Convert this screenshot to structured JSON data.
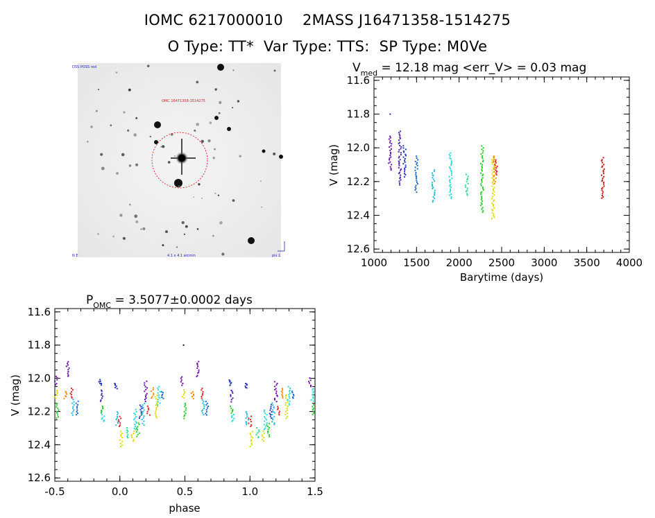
{
  "header": {
    "line1": "IOMC 6217000010    2MASS J16471358-1514275",
    "line2": "O Type: TT*  Var Type: TTS:  SP Type: M0Ve"
  },
  "image": {
    "label_top_left": "DSS POSS red",
    "label_center": "OMC 16471358-1514275",
    "label_bottom_left": "N E",
    "label_bottom_center": "4.1 x 4.1 arcmin",
    "label_bottom_right": "pix 1"
  },
  "lightcurve": {
    "title_main": "V",
    "title_sub": "med",
    "title_rest": " = 12.18 mag <err_V> = 0.03 mag",
    "xlabel": "Barytime (days)",
    "ylabel": "V (mag)"
  },
  "phaseplot": {
    "title_main": "P",
    "title_sub": "OMC",
    "title_rest": " = 3.5077±0.0002 days",
    "xlabel": "phase",
    "ylabel": "V (mag)"
  },
  "chart_data": [
    {
      "type": "scatter",
      "id": "lightcurve",
      "xlabel": "Barytime (days)",
      "ylabel": "V (mag)",
      "xlim": [
        1000,
        4000
      ],
      "ylim": [
        12.62,
        11.58
      ],
      "y_inverted": true,
      "xticks": [
        1000,
        1500,
        2000,
        2500,
        3000,
        3500,
        4000
      ],
      "yticks": [
        11.6,
        11.8,
        12.0,
        12.2,
        12.4,
        12.6
      ],
      "groups": [
        {
          "x": 1190,
          "ymin": 11.93,
          "ymax": 12.13,
          "color": "#6a0dad"
        },
        {
          "x": 1305,
          "ymin": 11.9,
          "ymax": 12.22,
          "color": "#4b1fa8"
        },
        {
          "x": 1360,
          "ymin": 11.99,
          "ymax": 12.17,
          "color": "#2233bb"
        },
        {
          "x": 1500,
          "ymin": 12.05,
          "ymax": 12.26,
          "color": "#1a66cc"
        },
        {
          "x": 1700,
          "ymin": 12.13,
          "ymax": 12.32,
          "color": "#22bbdd"
        },
        {
          "x": 1900,
          "ymin": 12.03,
          "ymax": 12.3,
          "color": "#22d8d8"
        },
        {
          "x": 2090,
          "ymin": 12.16,
          "ymax": 12.28,
          "color": "#22dd88"
        },
        {
          "x": 2270,
          "ymin": 11.99,
          "ymax": 12.38,
          "color": "#22cc22"
        },
        {
          "x": 2400,
          "ymin": 12.05,
          "ymax": 12.42,
          "color": "#dddd00"
        },
        {
          "x": 2420,
          "ymin": 12.05,
          "ymax": 12.21,
          "color": "#ff8800"
        },
        {
          "x": 2435,
          "ymin": 12.07,
          "ymax": 12.16,
          "color": "#dd2222"
        },
        {
          "x": 3690,
          "ymin": 12.06,
          "ymax": 12.3,
          "color": "#cc1111"
        }
      ],
      "outliers": [
        {
          "x": 1190,
          "y": 11.8,
          "color": "#6a0dad"
        }
      ]
    },
    {
      "type": "scatter",
      "id": "phaseplot",
      "xlabel": "phase",
      "ylabel": "V (mag)",
      "xlim": [
        -0.5,
        1.5
      ],
      "ylim": [
        12.62,
        11.58
      ],
      "y_inverted": true,
      "xticks": [
        -0.5,
        0.0,
        0.5,
        1.0,
        1.5
      ],
      "yticks": [
        11.6,
        11.8,
        12.0,
        12.2,
        12.4,
        12.6
      ],
      "period_days": 3.5077,
      "groups": [
        {
          "x": -0.49,
          "ymin": 11.99,
          "ymax": 12.04,
          "color": "#6a0dad"
        },
        {
          "x": -0.49,
          "ymin": 12.07,
          "ymax": 12.12,
          "color": "#dddd00"
        },
        {
          "x": -0.48,
          "ymin": 12.15,
          "ymax": 12.24,
          "color": "#22cc22"
        },
        {
          "x": -0.42,
          "ymin": 12.08,
          "ymax": 12.12,
          "color": "#ff8800"
        },
        {
          "x": -0.4,
          "ymin": 11.9,
          "ymax": 11.99,
          "color": "#6a0dad"
        },
        {
          "x": -0.37,
          "ymin": 12.06,
          "ymax": 12.12,
          "color": "#dd2222"
        },
        {
          "x": -0.36,
          "ymin": 12.13,
          "ymax": 12.22,
          "color": "#22bbdd"
        },
        {
          "x": -0.33,
          "ymin": 12.14,
          "ymax": 12.22,
          "color": "#1a66cc"
        },
        {
          "x": -0.15,
          "ymin": 12.01,
          "ymax": 12.04,
          "color": "#2233bb"
        },
        {
          "x": -0.14,
          "ymin": 12.07,
          "ymax": 12.14,
          "color": "#4b1fa8"
        },
        {
          "x": -0.14,
          "ymin": 12.17,
          "ymax": 12.21,
          "color": "#22cc22"
        },
        {
          "x": -0.13,
          "ymin": 12.22,
          "ymax": 12.26,
          "color": "#22d8d8"
        },
        {
          "x": -0.03,
          "ymin": 12.03,
          "ymax": 12.06,
          "color": "#2233bb"
        },
        {
          "x": -0.02,
          "ymin": 12.2,
          "ymax": 12.28,
          "color": "#22bbdd"
        },
        {
          "x": 0.0,
          "ymin": 12.23,
          "ymax": 12.29,
          "color": "#dd2222"
        },
        {
          "x": 0.01,
          "ymin": 12.32,
          "ymax": 12.41,
          "color": "#dddd00"
        },
        {
          "x": 0.06,
          "ymin": 12.3,
          "ymax": 12.36,
          "color": "#22dd88"
        },
        {
          "x": 0.1,
          "ymin": 12.32,
          "ymax": 12.38,
          "color": "#dddd00"
        },
        {
          "x": 0.12,
          "ymin": 12.19,
          "ymax": 12.31,
          "color": "#22d8d8"
        },
        {
          "x": 0.14,
          "ymin": 12.27,
          "ymax": 12.35,
          "color": "#22cc22"
        },
        {
          "x": 0.16,
          "ymin": 12.16,
          "ymax": 12.24,
          "color": "#2233bb"
        },
        {
          "x": 0.18,
          "ymin": 12.15,
          "ymax": 12.28,
          "color": "#22bbdd"
        },
        {
          "x": 0.2,
          "ymin": 12.02,
          "ymax": 12.14,
          "color": "#6a0dad"
        },
        {
          "x": 0.22,
          "ymin": 12.17,
          "ymax": 12.22,
          "color": "#dd2222"
        },
        {
          "x": 0.25,
          "ymin": 12.06,
          "ymax": 12.12,
          "color": "#ff8800"
        },
        {
          "x": 0.28,
          "ymin": 12.1,
          "ymax": 12.24,
          "color": "#dddd00"
        },
        {
          "x": 0.3,
          "ymin": 12.05,
          "ymax": 12.16,
          "color": "#22d8d8"
        },
        {
          "x": 0.33,
          "ymin": 12.08,
          "ymax": 12.12,
          "color": "#1a66cc"
        },
        {
          "x": 0.48,
          "ymin": 11.99,
          "ymax": 12.04,
          "color": "#6a0dad"
        },
        {
          "x": 0.49,
          "ymin": 12.07,
          "ymax": 12.12,
          "color": "#dddd00"
        },
        {
          "x": 0.5,
          "ymin": 12.15,
          "ymax": 12.24,
          "color": "#22cc22"
        },
        {
          "x": 0.56,
          "ymin": 12.08,
          "ymax": 12.12,
          "color": "#ff8800"
        },
        {
          "x": 0.6,
          "ymin": 11.9,
          "ymax": 11.99,
          "color": "#6a0dad"
        },
        {
          "x": 0.63,
          "ymin": 12.06,
          "ymax": 12.12,
          "color": "#dd2222"
        },
        {
          "x": 0.64,
          "ymin": 12.13,
          "ymax": 12.22,
          "color": "#22bbdd"
        },
        {
          "x": 0.67,
          "ymin": 12.14,
          "ymax": 12.22,
          "color": "#1a66cc"
        },
        {
          "x": 0.85,
          "ymin": 12.01,
          "ymax": 12.04,
          "color": "#2233bb"
        },
        {
          "x": 0.86,
          "ymin": 12.07,
          "ymax": 12.14,
          "color": "#4b1fa8"
        },
        {
          "x": 0.86,
          "ymin": 12.17,
          "ymax": 12.21,
          "color": "#22cc22"
        },
        {
          "x": 0.87,
          "ymin": 12.22,
          "ymax": 12.26,
          "color": "#22d8d8"
        },
        {
          "x": 0.97,
          "ymin": 12.03,
          "ymax": 12.06,
          "color": "#2233bb"
        },
        {
          "x": 0.98,
          "ymin": 12.2,
          "ymax": 12.28,
          "color": "#22bbdd"
        },
        {
          "x": 1.0,
          "ymin": 12.23,
          "ymax": 12.29,
          "color": "#dd2222"
        },
        {
          "x": 1.01,
          "ymin": 12.32,
          "ymax": 12.41,
          "color": "#dddd00"
        },
        {
          "x": 1.06,
          "ymin": 12.3,
          "ymax": 12.36,
          "color": "#22dd88"
        },
        {
          "x": 1.1,
          "ymin": 12.32,
          "ymax": 12.38,
          "color": "#dddd00"
        },
        {
          "x": 1.12,
          "ymin": 12.19,
          "ymax": 12.31,
          "color": "#22d8d8"
        },
        {
          "x": 1.14,
          "ymin": 12.27,
          "ymax": 12.35,
          "color": "#22cc22"
        },
        {
          "x": 1.16,
          "ymin": 12.16,
          "ymax": 12.24,
          "color": "#2233bb"
        },
        {
          "x": 1.18,
          "ymin": 12.15,
          "ymax": 12.28,
          "color": "#22bbdd"
        },
        {
          "x": 1.2,
          "ymin": 12.02,
          "ymax": 12.14,
          "color": "#6a0dad"
        },
        {
          "x": 1.22,
          "ymin": 12.17,
          "ymax": 12.22,
          "color": "#dd2222"
        },
        {
          "x": 1.25,
          "ymin": 12.06,
          "ymax": 12.12,
          "color": "#ff8800"
        },
        {
          "x": 1.28,
          "ymin": 12.1,
          "ymax": 12.24,
          "color": "#dddd00"
        },
        {
          "x": 1.3,
          "ymin": 12.05,
          "ymax": 12.16,
          "color": "#22d8d8"
        },
        {
          "x": 1.33,
          "ymin": 12.08,
          "ymax": 12.12,
          "color": "#1a66cc"
        },
        {
          "x": 1.46,
          "ymin": 12.0,
          "ymax": 12.05,
          "color": "#6a0dad"
        },
        {
          "x": 1.48,
          "ymin": 12.06,
          "ymax": 12.14,
          "color": "#22d8d8"
        },
        {
          "x": 1.49,
          "ymin": 12.16,
          "ymax": 12.22,
          "color": "#22cc22"
        }
      ],
      "outliers": [
        {
          "x": 0.49,
          "y": 11.8,
          "color": "#000000"
        }
      ]
    }
  ]
}
